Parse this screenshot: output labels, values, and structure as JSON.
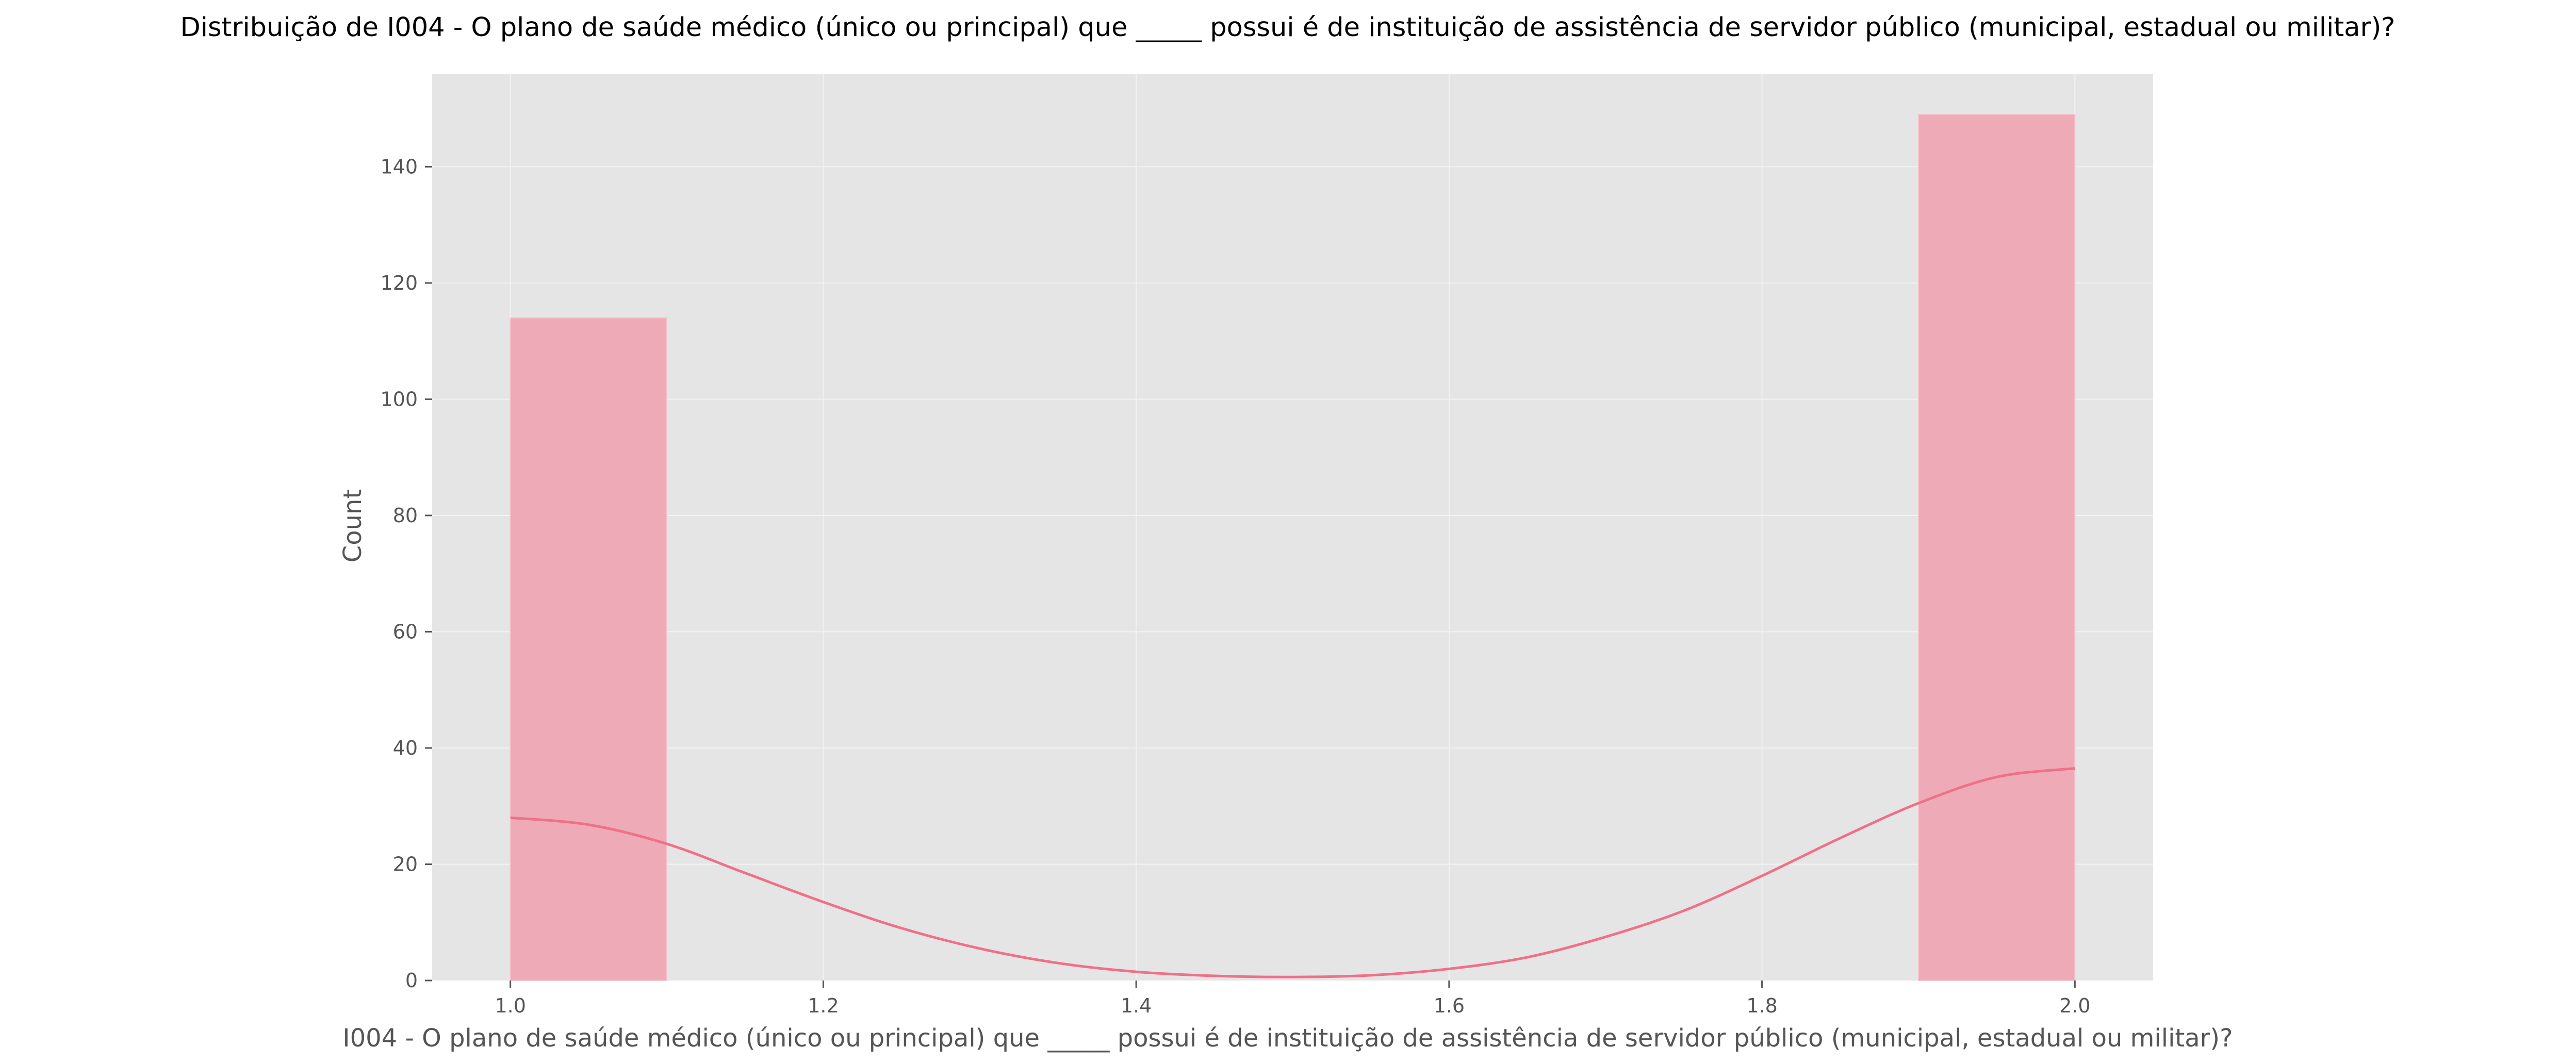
{
  "chart_data": {
    "type": "bar",
    "title": "Distribuição de I004 - O plano de saúde médico (único ou principal) que _____ possui é de instituição de assistência de servidor público (municipal, estadual ou militar)?",
    "xlabel": "I004 - O plano de saúde médico (único ou principal) que _____ possui é de instituição de assistência de servidor público (municipal, estadual ou militar)?",
    "ylabel": "Count",
    "xlim": [
      0.95,
      2.05
    ],
    "ylim": [
      0,
      156
    ],
    "x_ticks": [
      1.0,
      1.2,
      1.4,
      1.6,
      1.8,
      2.0
    ],
    "x_tick_labels": [
      "1.0",
      "1.2",
      "1.4",
      "1.6",
      "1.8",
      "2.0"
    ],
    "y_ticks": [
      0,
      20,
      40,
      60,
      80,
      100,
      120,
      140
    ],
    "y_tick_labels": [
      "0",
      "20",
      "40",
      "60",
      "80",
      "100",
      "120",
      "140"
    ],
    "grid": true,
    "bars": [
      {
        "x0": 1.0,
        "x1": 1.1,
        "value": 114
      },
      {
        "x0": 1.9,
        "x1": 2.0,
        "value": 149
      }
    ],
    "kde": {
      "x": [
        1.0,
        1.05,
        1.1,
        1.15,
        1.2,
        1.25,
        1.3,
        1.35,
        1.4,
        1.45,
        1.5,
        1.55,
        1.6,
        1.65,
        1.7,
        1.75,
        1.8,
        1.85,
        1.9,
        1.95,
        2.0
      ],
      "y": [
        28,
        26.8,
        23.5,
        18.5,
        13.5,
        9,
        5.5,
        3,
        1.5,
        0.8,
        0.6,
        0.9,
        2,
        4,
        7.5,
        12,
        18,
        24.5,
        30.5,
        35,
        36.5
      ]
    },
    "colors": {
      "background": "#e5e5e5",
      "bar": "#eeaab6",
      "kde_line": "#f07088",
      "grid": "#f2f2f2"
    }
  }
}
